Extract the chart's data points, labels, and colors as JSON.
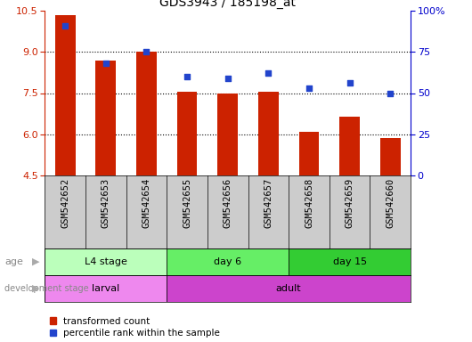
{
  "title": "GDS3943 / 185198_at",
  "samples": [
    "GSM542652",
    "GSM542653",
    "GSM542654",
    "GSM542655",
    "GSM542656",
    "GSM542657",
    "GSM542658",
    "GSM542659",
    "GSM542660"
  ],
  "transformed_count": [
    10.35,
    8.7,
    9.0,
    7.55,
    7.5,
    7.55,
    6.1,
    6.65,
    5.85
  ],
  "percentile_rank": [
    91,
    68,
    75,
    60,
    59,
    62,
    53,
    56,
    50
  ],
  "ylim_left": [
    4.5,
    10.5
  ],
  "ylim_right": [
    0,
    100
  ],
  "yticks_left": [
    4.5,
    6.0,
    7.5,
    9.0,
    10.5
  ],
  "ytick_labels_right": [
    "0",
    "25",
    "50",
    "75",
    "100%"
  ],
  "yticks_right": [
    0,
    25,
    50,
    75,
    100
  ],
  "bar_color": "#cc2200",
  "dot_color": "#2244cc",
  "bar_bottom": 4.5,
  "gridlines": [
    6.0,
    7.5,
    9.0
  ],
  "age_groups": [
    {
      "label": "L4 stage",
      "start": 0,
      "end": 3,
      "color": "#bbffbb"
    },
    {
      "label": "day 6",
      "start": 3,
      "end": 6,
      "color": "#66ee66"
    },
    {
      "label": "day 15",
      "start": 6,
      "end": 9,
      "color": "#33cc33"
    }
  ],
  "dev_groups": [
    {
      "label": "larval",
      "start": 0,
      "end": 3,
      "color": "#ee88ee"
    },
    {
      "label": "adult",
      "start": 3,
      "end": 9,
      "color": "#cc44cc"
    }
  ],
  "legend_bar_color": "#cc2200",
  "legend_dot_color": "#2244cc",
  "legend_bar_label": "transformed count",
  "legend_dot_label": "percentile rank within the sample",
  "tick_color_left": "#cc2200",
  "tick_color_right": "#0000cc",
  "sample_bg_color": "#cccccc",
  "sample_divider_color": "#999999"
}
